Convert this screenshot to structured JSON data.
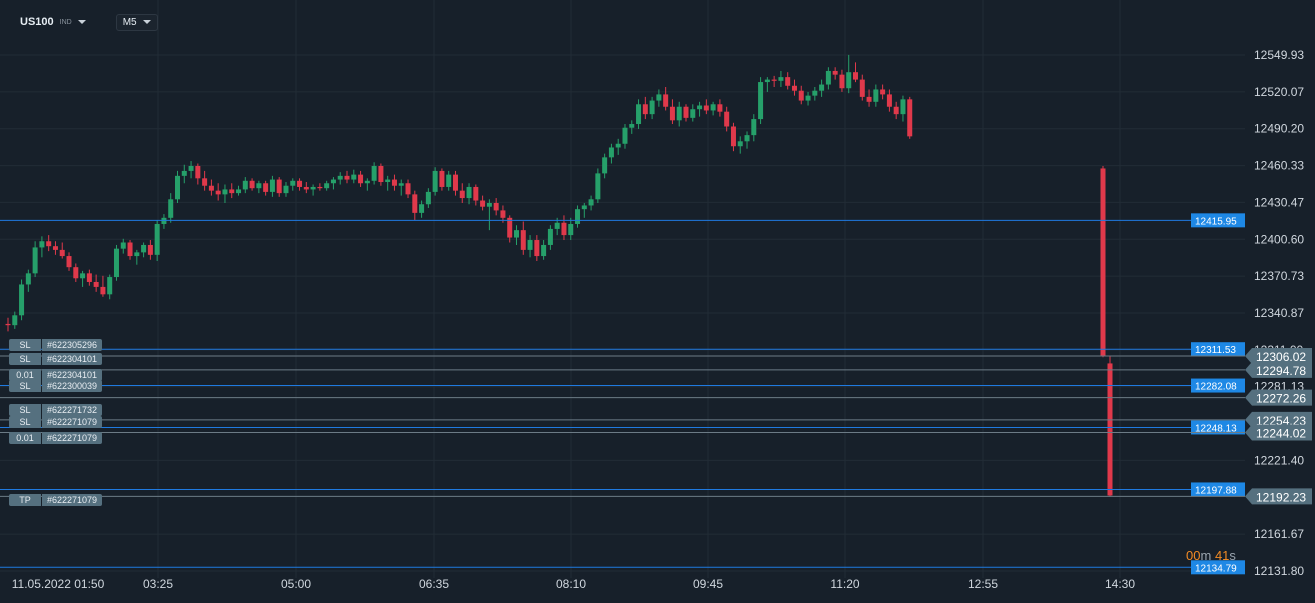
{
  "header": {
    "symbol": "US100",
    "symbol_type": "IND",
    "timeframe": "M5"
  },
  "timer": {
    "minutes": "00",
    "minutes_unit": "m",
    "seconds": "41",
    "seconds_unit": "s"
  },
  "colors": {
    "background": "#17202a",
    "grid": "#222c36",
    "up": "#26a06a",
    "down": "#e0394b",
    "hline": "#1f7ae0",
    "price_tag": "#1e88e5",
    "position_tag": "#55707f"
  },
  "chart_data": {
    "type": "candlestick",
    "symbol": "US100",
    "timeframe": "M5",
    "y_ticks": [
      "12549.93",
      "12520.07",
      "12490.20",
      "12460.33",
      "12430.47",
      "12400.60",
      "12370.73",
      "12340.87",
      "12311.00",
      "12281.13",
      "12221.40",
      "12161.67",
      "12131.80"
    ],
    "ylim": [
      12131.8,
      12549.93
    ],
    "x_ticks": [
      "11.05.2022 01:50",
      "03:25",
      "05:00",
      "06:35",
      "08:10",
      "09:45",
      "11:20",
      "12:55",
      "14:30"
    ],
    "horizontal_lines": [
      {
        "price": "12415.95",
        "style": "blue"
      },
      {
        "price": "12311.53",
        "style": "blue"
      },
      {
        "price": "12282.08",
        "style": "blue"
      },
      {
        "price": "12248.13",
        "style": "blue"
      },
      {
        "price": "12197.88",
        "style": "blue"
      },
      {
        "price": "12134.79",
        "style": "blue"
      }
    ],
    "position_lines": [
      {
        "price": "12306.02"
      },
      {
        "price": "12294.78"
      },
      {
        "price": "12272.26"
      },
      {
        "price": "12254.23"
      },
      {
        "price": "12244.02"
      },
      {
        "price": "12192.23"
      }
    ],
    "position_labels": [
      {
        "kind": "SL",
        "id": "#622305296"
      },
      {
        "kind": "SL",
        "id": "#622304101"
      },
      {
        "kind": "0.01",
        "id": "#622304101"
      },
      {
        "kind": "SL",
        "id": "#622300039"
      },
      {
        "kind": "SL",
        "id": "#622271732"
      },
      {
        "kind": "SL",
        "id": "#622271079"
      },
      {
        "kind": "0.01",
        "id": "#622271079"
      },
      {
        "kind": "TP",
        "id": "#622271079"
      }
    ],
    "candles": [
      {
        "o": 12332,
        "h": 12337,
        "l": 12326,
        "c": 12331
      },
      {
        "o": 12331,
        "h": 12342,
        "l": 12328,
        "c": 12339
      },
      {
        "o": 12339,
        "h": 12368,
        "l": 12335,
        "c": 12364
      },
      {
        "o": 12364,
        "h": 12376,
        "l": 12358,
        "c": 12373
      },
      {
        "o": 12373,
        "h": 12399,
        "l": 12370,
        "c": 12394
      },
      {
        "o": 12394,
        "h": 12403,
        "l": 12386,
        "c": 12399
      },
      {
        "o": 12399,
        "h": 12404,
        "l": 12391,
        "c": 12395
      },
      {
        "o": 12395,
        "h": 12399,
        "l": 12388,
        "c": 12392
      },
      {
        "o": 12392,
        "h": 12398,
        "l": 12385,
        "c": 12387
      },
      {
        "o": 12387,
        "h": 12390,
        "l": 12375,
        "c": 12378
      },
      {
        "o": 12378,
        "h": 12381,
        "l": 12366,
        "c": 12369
      },
      {
        "o": 12369,
        "h": 12375,
        "l": 12362,
        "c": 12373
      },
      {
        "o": 12373,
        "h": 12376,
        "l": 12363,
        "c": 12366
      },
      {
        "o": 12366,
        "h": 12372,
        "l": 12358,
        "c": 12362
      },
      {
        "o": 12362,
        "h": 12371,
        "l": 12354,
        "c": 12356
      },
      {
        "o": 12356,
        "h": 12372,
        "l": 12352,
        "c": 12370
      },
      {
        "o": 12370,
        "h": 12396,
        "l": 12367,
        "c": 12393
      },
      {
        "o": 12393,
        "h": 12401,
        "l": 12389,
        "c": 12398
      },
      {
        "o": 12398,
        "h": 12400,
        "l": 12384,
        "c": 12387
      },
      {
        "o": 12387,
        "h": 12392,
        "l": 12380,
        "c": 12390
      },
      {
        "o": 12390,
        "h": 12398,
        "l": 12386,
        "c": 12396
      },
      {
        "o": 12396,
        "h": 12400,
        "l": 12384,
        "c": 12388
      },
      {
        "o": 12388,
        "h": 12416,
        "l": 12383,
        "c": 12413
      },
      {
        "o": 12413,
        "h": 12421,
        "l": 12409,
        "c": 12418
      },
      {
        "o": 12418,
        "h": 12438,
        "l": 12414,
        "c": 12433
      },
      {
        "o": 12433,
        "h": 12456,
        "l": 12430,
        "c": 12452
      },
      {
        "o": 12452,
        "h": 12461,
        "l": 12446,
        "c": 12456
      },
      {
        "o": 12456,
        "h": 12464,
        "l": 12450,
        "c": 12460
      },
      {
        "o": 12460,
        "h": 12462,
        "l": 12445,
        "c": 12450
      },
      {
        "o": 12450,
        "h": 12456,
        "l": 12440,
        "c": 12444
      },
      {
        "o": 12444,
        "h": 12449,
        "l": 12436,
        "c": 12440
      },
      {
        "o": 12440,
        "h": 12446,
        "l": 12432,
        "c": 12437
      },
      {
        "o": 12437,
        "h": 12445,
        "l": 12430,
        "c": 12441
      },
      {
        "o": 12441,
        "h": 12446,
        "l": 12434,
        "c": 12438
      },
      {
        "o": 12438,
        "h": 12444,
        "l": 12436,
        "c": 12441
      },
      {
        "o": 12441,
        "h": 12451,
        "l": 12438,
        "c": 12448
      },
      {
        "o": 12448,
        "h": 12450,
        "l": 12440,
        "c": 12442
      },
      {
        "o": 12442,
        "h": 12448,
        "l": 12438,
        "c": 12446
      },
      {
        "o": 12446,
        "h": 12448,
        "l": 12436,
        "c": 12439
      },
      {
        "o": 12439,
        "h": 12452,
        "l": 12435,
        "c": 12449
      },
      {
        "o": 12449,
        "h": 12451,
        "l": 12435,
        "c": 12438
      },
      {
        "o": 12438,
        "h": 12447,
        "l": 12435,
        "c": 12444
      },
      {
        "o": 12444,
        "h": 12450,
        "l": 12440,
        "c": 12448
      },
      {
        "o": 12448,
        "h": 12450,
        "l": 12440,
        "c": 12443
      },
      {
        "o": 12443,
        "h": 12447,
        "l": 12438,
        "c": 12441
      },
      {
        "o": 12441,
        "h": 12445,
        "l": 12436,
        "c": 12443
      },
      {
        "o": 12443,
        "h": 12446,
        "l": 12440,
        "c": 12442
      },
      {
        "o": 12442,
        "h": 12448,
        "l": 12440,
        "c": 12446
      },
      {
        "o": 12446,
        "h": 12451,
        "l": 12441,
        "c": 12449
      },
      {
        "o": 12449,
        "h": 12455,
        "l": 12445,
        "c": 12452
      },
      {
        "o": 12452,
        "h": 12456,
        "l": 12446,
        "c": 12449
      },
      {
        "o": 12449,
        "h": 12457,
        "l": 12446,
        "c": 12453
      },
      {
        "o": 12453,
        "h": 12456,
        "l": 12443,
        "c": 12446
      },
      {
        "o": 12446,
        "h": 12450,
        "l": 12440,
        "c": 12448
      },
      {
        "o": 12448,
        "h": 12463,
        "l": 12445,
        "c": 12460
      },
      {
        "o": 12460,
        "h": 12462,
        "l": 12444,
        "c": 12447
      },
      {
        "o": 12447,
        "h": 12452,
        "l": 12440,
        "c": 12449
      },
      {
        "o": 12449,
        "h": 12453,
        "l": 12440,
        "c": 12444
      },
      {
        "o": 12444,
        "h": 12449,
        "l": 12436,
        "c": 12446
      },
      {
        "o": 12446,
        "h": 12449,
        "l": 12434,
        "c": 12437
      },
      {
        "o": 12437,
        "h": 12440,
        "l": 12416,
        "c": 12422
      },
      {
        "o": 12422,
        "h": 12432,
        "l": 12418,
        "c": 12429
      },
      {
        "o": 12429,
        "h": 12442,
        "l": 12426,
        "c": 12439
      },
      {
        "o": 12439,
        "h": 12459,
        "l": 12436,
        "c": 12456
      },
      {
        "o": 12456,
        "h": 12458,
        "l": 12440,
        "c": 12443
      },
      {
        "o": 12443,
        "h": 12456,
        "l": 12440,
        "c": 12453
      },
      {
        "o": 12453,
        "h": 12456,
        "l": 12436,
        "c": 12440
      },
      {
        "o": 12440,
        "h": 12446,
        "l": 12430,
        "c": 12434
      },
      {
        "o": 12434,
        "h": 12446,
        "l": 12429,
        "c": 12443
      },
      {
        "o": 12443,
        "h": 12445,
        "l": 12428,
        "c": 12432
      },
      {
        "o": 12432,
        "h": 12436,
        "l": 12424,
        "c": 12427
      },
      {
        "o": 12427,
        "h": 12433,
        "l": 12408,
        "c": 12430
      },
      {
        "o": 12430,
        "h": 12434,
        "l": 12420,
        "c": 12424
      },
      {
        "o": 12424,
        "h": 12428,
        "l": 12414,
        "c": 12418
      },
      {
        "o": 12418,
        "h": 12420,
        "l": 12398,
        "c": 12402
      },
      {
        "o": 12402,
        "h": 12412,
        "l": 12396,
        "c": 12408
      },
      {
        "o": 12408,
        "h": 12415,
        "l": 12388,
        "c": 12392
      },
      {
        "o": 12392,
        "h": 12404,
        "l": 12386,
        "c": 12400
      },
      {
        "o": 12400,
        "h": 12404,
        "l": 12383,
        "c": 12387
      },
      {
        "o": 12387,
        "h": 12400,
        "l": 12384,
        "c": 12396
      },
      {
        "o": 12396,
        "h": 12412,
        "l": 12392,
        "c": 12409
      },
      {
        "o": 12409,
        "h": 12418,
        "l": 12404,
        "c": 12414
      },
      {
        "o": 12414,
        "h": 12420,
        "l": 12400,
        "c": 12404
      },
      {
        "o": 12404,
        "h": 12418,
        "l": 12400,
        "c": 12413
      },
      {
        "o": 12413,
        "h": 12428,
        "l": 12410,
        "c": 12425
      },
      {
        "o": 12425,
        "h": 12430,
        "l": 12418,
        "c": 12428
      },
      {
        "o": 12428,
        "h": 12436,
        "l": 12424,
        "c": 12433
      },
      {
        "o": 12433,
        "h": 12458,
        "l": 12430,
        "c": 12454
      },
      {
        "o": 12454,
        "h": 12470,
        "l": 12450,
        "c": 12467
      },
      {
        "o": 12467,
        "h": 12478,
        "l": 12462,
        "c": 12475
      },
      {
        "o": 12475,
        "h": 12482,
        "l": 12469,
        "c": 12478
      },
      {
        "o": 12478,
        "h": 12494,
        "l": 12474,
        "c": 12491
      },
      {
        "o": 12491,
        "h": 12497,
        "l": 12486,
        "c": 12494
      },
      {
        "o": 12494,
        "h": 12514,
        "l": 12490,
        "c": 12510
      },
      {
        "o": 12510,
        "h": 12516,
        "l": 12498,
        "c": 12502
      },
      {
        "o": 12502,
        "h": 12516,
        "l": 12498,
        "c": 12513
      },
      {
        "o": 12513,
        "h": 12522,
        "l": 12508,
        "c": 12518
      },
      {
        "o": 12518,
        "h": 12524,
        "l": 12505,
        "c": 12508
      },
      {
        "o": 12508,
        "h": 12514,
        "l": 12494,
        "c": 12497
      },
      {
        "o": 12497,
        "h": 12512,
        "l": 12492,
        "c": 12508
      },
      {
        "o": 12508,
        "h": 12510,
        "l": 12496,
        "c": 12499
      },
      {
        "o": 12499,
        "h": 12510,
        "l": 12496,
        "c": 12506
      },
      {
        "o": 12506,
        "h": 12512,
        "l": 12500,
        "c": 12509
      },
      {
        "o": 12509,
        "h": 12514,
        "l": 12502,
        "c": 12505
      },
      {
        "o": 12505,
        "h": 12512,
        "l": 12501,
        "c": 12510
      },
      {
        "o": 12510,
        "h": 12514,
        "l": 12500,
        "c": 12504
      },
      {
        "o": 12504,
        "h": 12508,
        "l": 12488,
        "c": 12492
      },
      {
        "o": 12492,
        "h": 12495,
        "l": 12472,
        "c": 12476
      },
      {
        "o": 12476,
        "h": 12484,
        "l": 12470,
        "c": 12480
      },
      {
        "o": 12480,
        "h": 12488,
        "l": 12474,
        "c": 12485
      },
      {
        "o": 12485,
        "h": 12502,
        "l": 12480,
        "c": 12498
      },
      {
        "o": 12498,
        "h": 12532,
        "l": 12494,
        "c": 12528
      },
      {
        "o": 12528,
        "h": 12532,
        "l": 12520,
        "c": 12530
      },
      {
        "o": 12530,
        "h": 12533,
        "l": 12524,
        "c": 12529
      },
      {
        "o": 12529,
        "h": 12537,
        "l": 12524,
        "c": 12532
      },
      {
        "o": 12532,
        "h": 12536,
        "l": 12522,
        "c": 12525
      },
      {
        "o": 12525,
        "h": 12530,
        "l": 12517,
        "c": 12521
      },
      {
        "o": 12521,
        "h": 12525,
        "l": 12510,
        "c": 12513
      },
      {
        "o": 12513,
        "h": 12520,
        "l": 12509,
        "c": 12517
      },
      {
        "o": 12517,
        "h": 12524,
        "l": 12513,
        "c": 12521
      },
      {
        "o": 12521,
        "h": 12530,
        "l": 12516,
        "c": 12526
      },
      {
        "o": 12526,
        "h": 12540,
        "l": 12522,
        "c": 12537
      },
      {
        "o": 12537,
        "h": 12540,
        "l": 12530,
        "c": 12534
      },
      {
        "o": 12534,
        "h": 12538,
        "l": 12520,
        "c": 12523
      },
      {
        "o": 12523,
        "h": 12550,
        "l": 12519,
        "c": 12536
      },
      {
        "o": 12536,
        "h": 12544,
        "l": 12528,
        "c": 12530
      },
      {
        "o": 12530,
        "h": 12534,
        "l": 12513,
        "c": 12516
      },
      {
        "o": 12516,
        "h": 12522,
        "l": 12508,
        "c": 12512
      },
      {
        "o": 12512,
        "h": 12526,
        "l": 12508,
        "c": 12522
      },
      {
        "o": 12522,
        "h": 12526,
        "l": 12514,
        "c": 12518
      },
      {
        "o": 12518,
        "h": 12522,
        "l": 12504,
        "c": 12508
      },
      {
        "o": 12508,
        "h": 12512,
        "l": 12498,
        "c": 12502
      },
      {
        "o": 12502,
        "h": 12517,
        "l": 12496,
        "c": 12514
      },
      {
        "o": 12514,
        "h": 12516,
        "l": 12482,
        "c": 12484
      },
      {
        "o": 12458,
        "h": 12460,
        "l": 12305,
        "c": 12306
      },
      {
        "o": 12300,
        "h": 12306,
        "l": 12192,
        "c": 12193
      }
    ]
  }
}
